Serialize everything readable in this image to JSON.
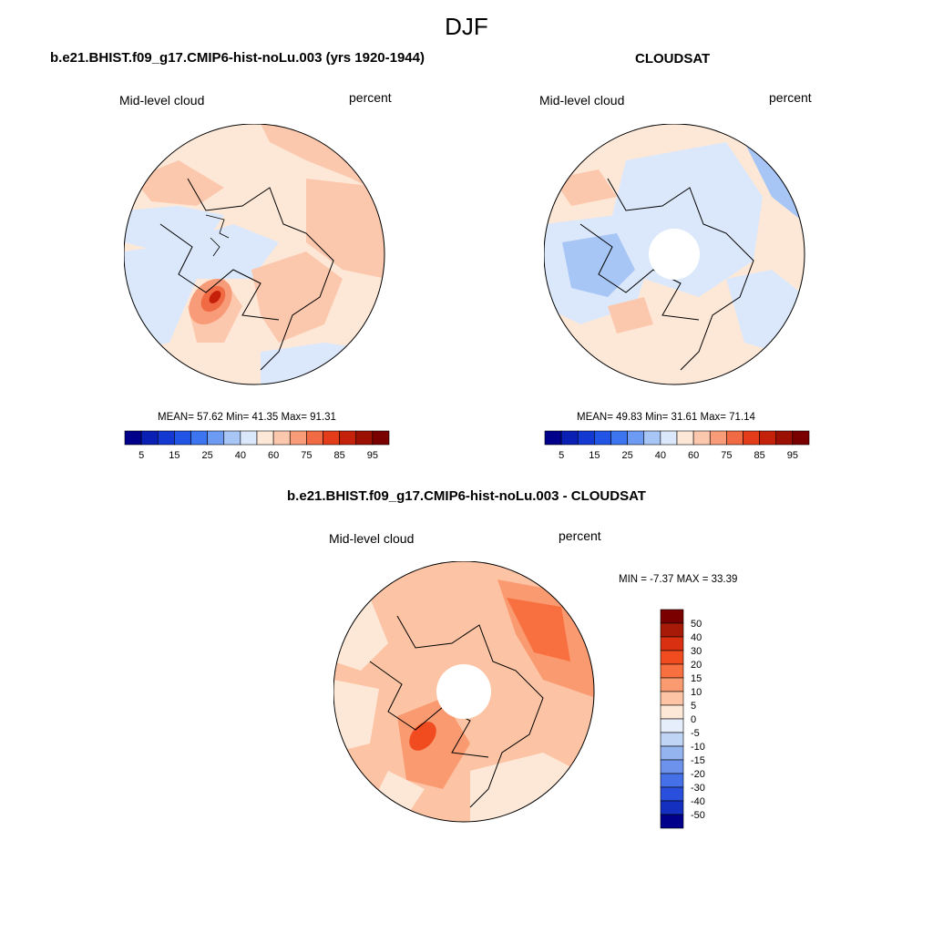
{
  "title": "DJF",
  "panels": [
    {
      "title": "b.e21.BHIST.f09_g17.CMIP6-hist-noLu.003 (yrs 1920-1944)",
      "left_label": "Mid-level cloud",
      "right_label": "percent",
      "stats": "MEAN=  57.62  Min=  41.35  Max=  91.31"
    },
    {
      "title": "CLOUDSAT",
      "left_label": "Mid-level cloud",
      "right_label": "percent",
      "stats": "MEAN=  49.83  Min=  31.61  Max=  71.14"
    },
    {
      "title": "b.e21.BHIST.f09_g17.CMIP6-hist-noLu.003 - CLOUDSAT",
      "left_label": "Mid-level cloud",
      "right_label": "percent",
      "stats": "MIN =  -7.37 MAX =  33.39"
    }
  ],
  "chart_data": [
    {
      "type": "heatmap",
      "projection": "north-polar-stereographic",
      "variable": "Mid-level cloud",
      "units": "percent",
      "mean": 57.62,
      "min": 41.35,
      "max": 91.31,
      "colorbar": {
        "orientation": "horizontal",
        "tick_labels": [
          "5",
          "15",
          "25",
          "40",
          "60",
          "75",
          "85",
          "95"
        ],
        "colors": [
          "#00008b",
          "#0a1fb4",
          "#1438d2",
          "#2255e6",
          "#3d74f0",
          "#6d9af2",
          "#a8c6f5",
          "#dbe8fb",
          "#fde8d8",
          "#fcc8ad",
          "#f89b78",
          "#f06a44",
          "#e23c1a",
          "#c4200a",
          "#9c1004",
          "#7a0000"
        ]
      }
    },
    {
      "type": "heatmap",
      "projection": "north-polar-stereographic",
      "variable": "Mid-level cloud",
      "units": "percent",
      "mean": 49.83,
      "min": 31.61,
      "max": 71.14,
      "colorbar": {
        "orientation": "horizontal",
        "tick_labels": [
          "5",
          "15",
          "25",
          "40",
          "60",
          "75",
          "85",
          "95"
        ],
        "colors": [
          "#00008b",
          "#0a1fb4",
          "#1438d2",
          "#2255e6",
          "#3d74f0",
          "#6d9af2",
          "#a8c6f5",
          "#dbe8fb",
          "#fde8d8",
          "#fcc8ad",
          "#f89b78",
          "#f06a44",
          "#e23c1a",
          "#c4200a",
          "#9c1004",
          "#7a0000"
        ]
      }
    },
    {
      "type": "heatmap",
      "projection": "north-polar-stereographic",
      "variable": "Mid-level cloud",
      "units": "percent",
      "min": -7.37,
      "max": 33.39,
      "colorbar": {
        "orientation": "vertical",
        "tick_labels": [
          "50",
          "40",
          "30",
          "20",
          "15",
          "10",
          "5",
          "0",
          "-5",
          "-10",
          "-15",
          "-20",
          "-30",
          "-40",
          "-50"
        ],
        "colors": [
          "#7a0000",
          "#a81a08",
          "#d83010",
          "#f04c20",
          "#f97040",
          "#fa9a70",
          "#fcc4a4",
          "#fde8d8",
          "#e6eefb",
          "#c0d4f5",
          "#94b4f0",
          "#6d92ec",
          "#4670e8",
          "#2a4fdc",
          "#1430c0",
          "#00008b"
        ]
      }
    }
  ]
}
